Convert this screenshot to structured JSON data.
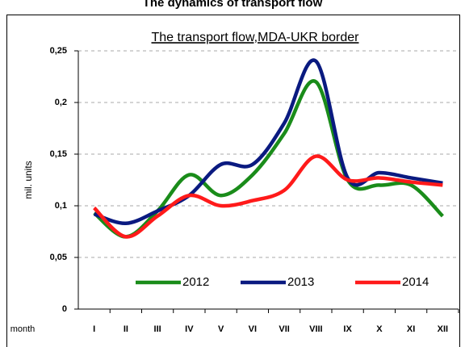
{
  "chart_data": {
    "type": "line",
    "title": "The dynamics of transport flow",
    "subtitle": "The transport flow,MDA-UKR border",
    "y_label": "mil. units",
    "x_label": "month",
    "categories": [
      "I",
      "II",
      "III",
      "IV",
      "V",
      "VI",
      "VII",
      "VIII",
      "IX",
      "X",
      "XI",
      "XII"
    ],
    "series": [
      {
        "name": "2012",
        "color": "#1a8c1a",
        "values": [
          0.093,
          0.07,
          0.095,
          0.13,
          0.11,
          0.13,
          0.17,
          0.22,
          0.125,
          0.12,
          0.12,
          0.09
        ]
      },
      {
        "name": "2013",
        "color": "#0a1a80",
        "values": [
          0.092,
          0.083,
          0.095,
          0.11,
          0.14,
          0.14,
          0.18,
          0.24,
          0.127,
          0.132,
          0.127,
          0.122
        ]
      },
      {
        "name": "2014",
        "color": "#ff1a1a",
        "values": [
          0.098,
          0.07,
          0.09,
          0.11,
          0.1,
          0.105,
          0.115,
          0.148,
          0.125,
          0.127,
          0.123,
          0.12
        ]
      }
    ],
    "ylim": [
      0,
      0.25
    ],
    "yticks": [
      {
        "value": 0,
        "label": "0"
      },
      {
        "value": 0.05,
        "label": "0,05"
      },
      {
        "value": 0.1,
        "label": "0,1"
      },
      {
        "value": 0.15,
        "label": "0,15"
      },
      {
        "value": 0.2,
        "label": "0,2"
      },
      {
        "value": 0.25,
        "label": "0,25"
      }
    ],
    "grid": true,
    "smooth": true,
    "legend": "bottom"
  }
}
